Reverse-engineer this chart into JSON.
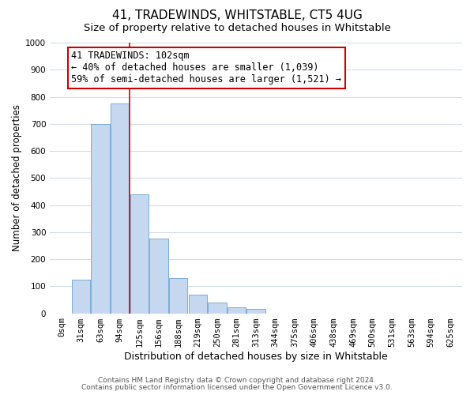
{
  "title": "41, TRADEWINDS, WHITSTABLE, CT5 4UG",
  "subtitle": "Size of property relative to detached houses in Whitstable",
  "xlabel": "Distribution of detached houses by size in Whitstable",
  "ylabel": "Number of detached properties",
  "bar_labels": [
    "0sqm",
    "31sqm",
    "63sqm",
    "94sqm",
    "125sqm",
    "156sqm",
    "188sqm",
    "219sqm",
    "250sqm",
    "281sqm",
    "313sqm",
    "344sqm",
    "375sqm",
    "406sqm",
    "438sqm",
    "469sqm",
    "500sqm",
    "531sqm",
    "563sqm",
    "594sqm",
    "625sqm"
  ],
  "bar_values": [
    0,
    125,
    700,
    775,
    440,
    275,
    130,
    68,
    40,
    22,
    15,
    0,
    0,
    0,
    0,
    0,
    0,
    0,
    0,
    0,
    0
  ],
  "bar_color": "#c5d8f0",
  "bar_edge_color": "#7bacd4",
  "vline_x": 3.5,
  "vline_color": "#cc0000",
  "annotation_text": "41 TRADEWINDS: 102sqm\n← 40% of detached houses are smaller (1,039)\n59% of semi-detached houses are larger (1,521) →",
  "annotation_box_color": "#ffffff",
  "annotation_box_edgecolor": "#cc0000",
  "ylim": [
    0,
    1000
  ],
  "yticks": [
    0,
    100,
    200,
    300,
    400,
    500,
    600,
    700,
    800,
    900,
    1000
  ],
  "footnote1": "Contains HM Land Registry data © Crown copyright and database right 2024.",
  "footnote2": "Contains public sector information licensed under the Open Government Licence v3.0.",
  "bg_color": "#ffffff",
  "grid_color": "#d0dce8",
  "title_fontsize": 11,
  "subtitle_fontsize": 9.5,
  "xlabel_fontsize": 9,
  "ylabel_fontsize": 8.5,
  "tick_fontsize": 7.5,
  "annotation_fontsize": 8.5,
  "footnote_fontsize": 6.5
}
